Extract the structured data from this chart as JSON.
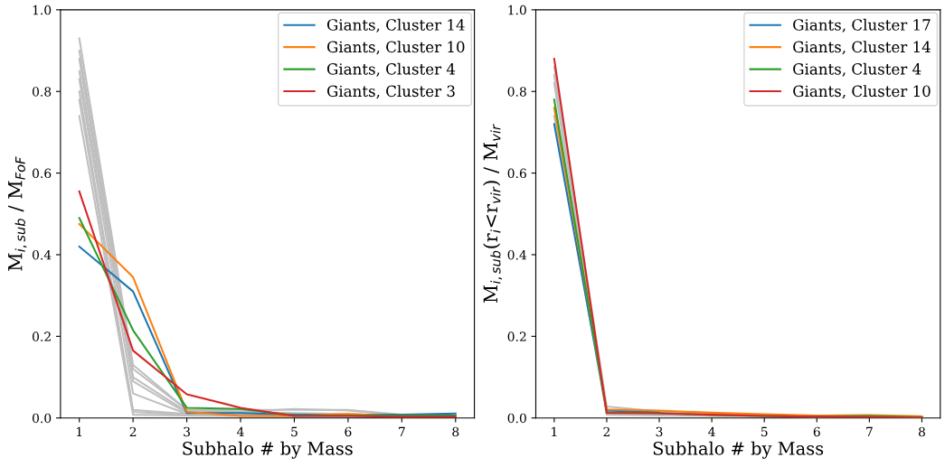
{
  "chart_data": [
    {
      "type": "line",
      "xlabel": "Subhalo # by Mass",
      "ylabel": "M$_{i,sub}$ / M$_{FoF}$",
      "x": [
        1,
        2,
        3,
        4,
        5,
        6,
        7,
        8
      ],
      "xlim": [
        0.65,
        8.35
      ],
      "xticks": [
        1,
        2,
        3,
        4,
        5,
        6,
        7,
        8
      ],
      "ylim": [
        0,
        1.0
      ],
      "yticks": [
        {
          "value": 0,
          "label": "0.0"
        },
        {
          "value": 0.2,
          "label": "0.2"
        },
        {
          "value": 0.4,
          "label": "0.4"
        },
        {
          "value": 0.6,
          "label": "0.6"
        },
        {
          "value": 0.8,
          "label": "0.8"
        },
        {
          "value": 1.0,
          "label": "1.0"
        }
      ],
      "legend": "top right",
      "grid": false,
      "series": [
        {
          "color": "#bfbfbf",
          "values": [
            0.93,
            0.13,
            0.02,
            0.015,
            0.012,
            0.01,
            0.006,
            0.005
          ]
        },
        {
          "color": "#bfbfbf",
          "values": [
            0.9,
            0.12,
            0.02,
            0.02,
            0.02,
            0.02,
            0.008,
            0.006
          ]
        },
        {
          "color": "#bfbfbf",
          "values": [
            0.88,
            0.1,
            0.015,
            0.015,
            0.022,
            0.018,
            0.006,
            0.004
          ]
        },
        {
          "color": "#bfbfbf",
          "values": [
            0.85,
            0.09,
            0.012,
            0.01,
            0.008,
            0.006,
            0.005,
            0.004
          ]
        },
        {
          "color": "#bfbfbf",
          "values": [
            0.83,
            0.06,
            0.01,
            0.008,
            0.006,
            0.005,
            0.004,
            0.003
          ]
        },
        {
          "color": "#bfbfbf",
          "values": [
            0.8,
            0.02,
            0.01,
            0.008,
            0.006,
            0.005,
            0.004,
            0.003
          ]
        },
        {
          "color": "#bfbfbf",
          "values": [
            0.78,
            0.015,
            0.008,
            0.006,
            0.005,
            0.004,
            0.003,
            0.002
          ]
        },
        {
          "color": "#bfbfbf",
          "values": [
            0.74,
            0.008,
            0.006,
            0.005,
            0.004,
            0.003,
            0.002,
            0.002
          ]
        },
        {
          "name": "Giants, Cluster 14",
          "color": "#1f77b4",
          "values": [
            0.42,
            0.31,
            0.012,
            0.012,
            0.008,
            0.008,
            0.008,
            0.011
          ]
        },
        {
          "name": "Giants, Cluster 10",
          "color": "#ff7f0e",
          "values": [
            0.475,
            0.345,
            0.015,
            0.005,
            0.005,
            0.01,
            0.004,
            0.004
          ]
        },
        {
          "name": "Giants, Cluster 4",
          "color": "#2ca02c",
          "values": [
            0.49,
            0.215,
            0.025,
            0.022,
            0.006,
            0.006,
            0.006,
            0.006
          ]
        },
        {
          "name": "Giants, Cluster 3",
          "color": "#d62728",
          "values": [
            0.555,
            0.165,
            0.058,
            0.025,
            0.005,
            0.005,
            0.003,
            0.003
          ]
        }
      ]
    },
    {
      "type": "line",
      "xlabel": "Subhalo # by Mass",
      "ylabel": "M$_{i,sub}$(r$_{i}$<r$_{vir}$) / M$_{vir}$",
      "x": [
        1,
        2,
        3,
        4,
        5,
        6,
        7,
        8
      ],
      "xlim": [
        0.65,
        8.35
      ],
      "xticks": [
        1,
        2,
        3,
        4,
        5,
        6,
        7,
        8
      ],
      "ylim": [
        0,
        1.0
      ],
      "yticks": [
        {
          "value": 0,
          "label": "0.0"
        },
        {
          "value": 0.2,
          "label": "0.2"
        },
        {
          "value": 0.4,
          "label": "0.4"
        },
        {
          "value": 0.6,
          "label": "0.6"
        },
        {
          "value": 0.8,
          "label": "0.8"
        },
        {
          "value": 1.0,
          "label": "1.0"
        }
      ],
      "legend": "top right",
      "grid": false,
      "series": [
        {
          "color": "#bfbfbf",
          "values": [
            0.86,
            0.028,
            0.016,
            0.01,
            0.007,
            0.005,
            0.004,
            0.003
          ]
        },
        {
          "color": "#bfbfbf",
          "values": [
            0.84,
            0.02,
            0.014,
            0.009,
            0.006,
            0.004,
            0.003,
            0.002
          ]
        },
        {
          "color": "#bfbfbf",
          "values": [
            0.82,
            0.015,
            0.012,
            0.008,
            0.006,
            0.004,
            0.003,
            0.002
          ]
        },
        {
          "color": "#bfbfbf",
          "values": [
            0.74,
            0.008,
            0.006,
            0.005,
            0.004,
            0.003,
            0.002,
            0.001
          ]
        },
        {
          "name": "Giants, Cluster 17",
          "color": "#1f77b4",
          "values": [
            0.72,
            0.018,
            0.014,
            null,
            null,
            null,
            null,
            null
          ]
        },
        {
          "name": "Giants, Cluster 14",
          "color": "#ff7f0e",
          "values": [
            0.76,
            0.021,
            0.018,
            0.013,
            0.009,
            0.006,
            0.007,
            0.004
          ]
        },
        {
          "name": "Giants, Cluster 4",
          "color": "#2ca02c",
          "values": [
            0.78,
            0.013,
            0.012,
            0.007,
            0.005,
            0.003,
            0.005,
            0.002
          ]
        },
        {
          "name": "Giants, Cluster 10",
          "color": "#d62728",
          "values": [
            0.88,
            0.012,
            0.011,
            0.008,
            0.005,
            0.003,
            0.002,
            0.001
          ]
        }
      ]
    }
  ]
}
